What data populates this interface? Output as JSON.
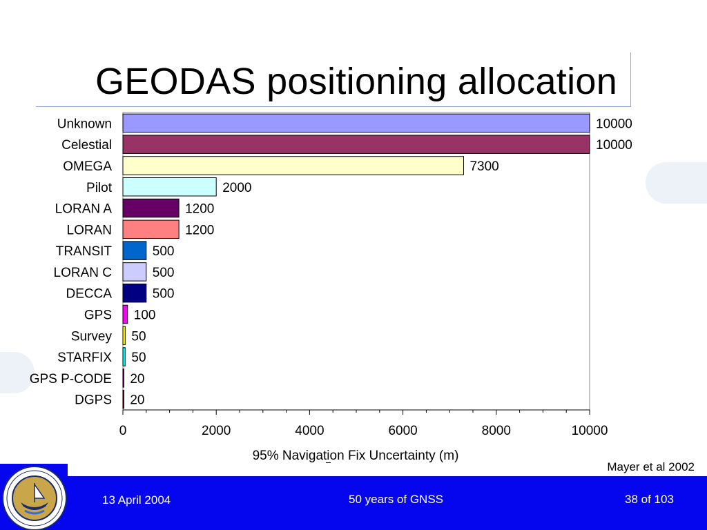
{
  "slide": {
    "title": "GEODAS positioning allocation",
    "citation": "Mayer et al 2002"
  },
  "footer": {
    "date": "13 April 2004",
    "center": "50 years of GNSS",
    "page": "38 of 103"
  },
  "logo": {
    "name": "institute-of-navigation-seal"
  },
  "chart_data": {
    "type": "bar",
    "orientation": "horizontal",
    "xlabel": "95% Navigation Fix Uncertainty (m)",
    "xlim": [
      0,
      10000
    ],
    "xticks": [
      "0",
      "2000",
      "4000",
      "6000",
      "8000",
      "10000"
    ],
    "grid": false,
    "categories": [
      "Unknown",
      "Celestial",
      "OMEGA",
      "Pilot",
      "LORAN A",
      "LORAN",
      "TRANSIT",
      "LORAN C",
      "DECCA",
      "GPS",
      "Survey",
      "STARFIX",
      "GPS P-CODE",
      "DGPS"
    ],
    "values": [
      10000,
      10000,
      7300,
      2000,
      1200,
      1200,
      500,
      500,
      500,
      100,
      50,
      50,
      20,
      20
    ],
    "value_labels": [
      "10000",
      "10000",
      "7300",
      "2000",
      "1200",
      "1200",
      "500",
      "500",
      "500",
      "100",
      "50",
      "50",
      "20",
      "20"
    ],
    "colors": [
      "#9999ff",
      "#993366",
      "#ffffcc",
      "#ccffff",
      "#660066",
      "#ff8080",
      "#0066cc",
      "#ccccff",
      "#000080",
      "#ff00ff",
      "#ffff00",
      "#00ffff",
      "#800080",
      "#800000"
    ]
  }
}
